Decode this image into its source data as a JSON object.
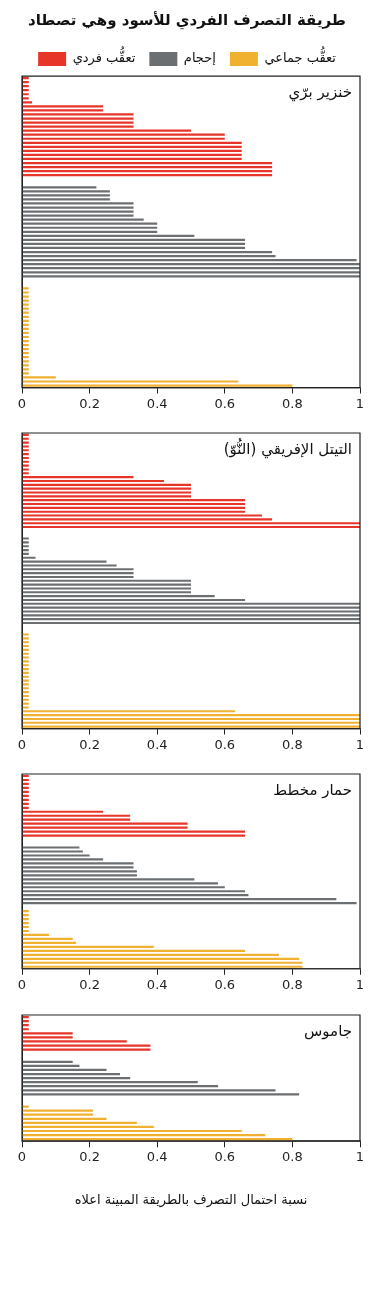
{
  "chart_data": [
    {
      "type": "bar",
      "orientation": "horizontal",
      "title": "طريقة التصرف الفردي للأسود وهي تصطاد",
      "subtitle": "خنزير برّي",
      "legend": "top",
      "tick_labels": "x",
      "xlim": [
        0,
        1
      ],
      "xticks": [
        0,
        0.2,
        0.4,
        0.6,
        0.8,
        1
      ],
      "categories": [
        null,
        null,
        null,
        null,
        null,
        null,
        null,
        null,
        null,
        null,
        null,
        null,
        null,
        null,
        null,
        null,
        null,
        null,
        null,
        null,
        null,
        null,
        null,
        null,
        null,
        null,
        null,
        null,
        null,
        null,
        null,
        null,
        null,
        null,
        null,
        null,
        null,
        null,
        null,
        null,
        null,
        null,
        null,
        null,
        null,
        null,
        null,
        null,
        null,
        null,
        null,
        null,
        null,
        null,
        null,
        null,
        null,
        null,
        null,
        null,
        null,
        null,
        null,
        null,
        null,
        null,
        null,
        null,
        null,
        null,
        null,
        null,
        null,
        null,
        null,
        null,
        null
      ],
      "series": [
        {
          "name": "تعقُّب فردي",
          "color": "#e8352a",
          "values": [
            0.02,
            0.02,
            0.02,
            0.02,
            0.02,
            0.02,
            0.03,
            0.24,
            0.24,
            0.33,
            0.33,
            0.33,
            0.33,
            0.5,
            0.6,
            0.6,
            0.65,
            0.65,
            0.65,
            0.65,
            0.65,
            0.74,
            0.74,
            0.74,
            0.74,
            null,
            null,
            null,
            null,
            null,
            null,
            null,
            null,
            null,
            null,
            null,
            null,
            null,
            null,
            null,
            null,
            null,
            null,
            null,
            null,
            null,
            null,
            null,
            null,
            null,
            null,
            null,
            null,
            null,
            null,
            null,
            null,
            null,
            null,
            null,
            null,
            null,
            null,
            null,
            null,
            null,
            null,
            null,
            null,
            null,
            null,
            null,
            null,
            null,
            null,
            null,
            null
          ]
        },
        {
          "name": "إحجام",
          "color": "#6b6f72",
          "values": [
            null,
            null,
            null,
            null,
            null,
            null,
            null,
            null,
            null,
            null,
            null,
            null,
            null,
            null,
            null,
            null,
            null,
            null,
            null,
            null,
            null,
            null,
            null,
            null,
            null,
            null,
            null,
            0.22,
            0.26,
            0.26,
            0.26,
            0.33,
            0.33,
            0.33,
            0.33,
            0.36,
            0.4,
            0.4,
            0.4,
            0.51,
            0.66,
            0.66,
            0.66,
            0.74,
            0.75,
            0.99,
            1,
            1,
            1,
            1,
            null,
            null,
            null,
            null,
            null,
            null,
            null,
            null,
            null,
            null,
            null,
            null,
            null,
            null,
            null,
            null,
            null,
            null,
            null,
            null,
            null,
            null,
            null,
            null,
            null,
            null,
            null
          ]
        },
        {
          "name": "تعقُّب جماعي",
          "color": "#f0b030",
          "values": [
            null,
            null,
            null,
            null,
            null,
            null,
            null,
            null,
            null,
            null,
            null,
            null,
            null,
            null,
            null,
            null,
            null,
            null,
            null,
            null,
            null,
            null,
            null,
            null,
            null,
            null,
            null,
            null,
            null,
            null,
            null,
            null,
            null,
            null,
            null,
            null,
            null,
            null,
            null,
            null,
            null,
            null,
            null,
            null,
            null,
            null,
            null,
            null,
            null,
            null,
            null,
            null,
            0.02,
            0.02,
            0.02,
            0.02,
            0.02,
            0.02,
            0.02,
            0.02,
            0.02,
            0.02,
            0.02,
            0.02,
            0.02,
            0.02,
            0.02,
            0.02,
            0.02,
            0.02,
            0.02,
            0.02,
            0.02,
            0.02,
            0.1,
            0.64,
            0.8
          ]
        }
      ]
    },
    {
      "type": "bar",
      "orientation": "horizontal",
      "subtitle": "التيتل الإفريقي (النُّوّ)",
      "tick_labels": "x",
      "xlim": [
        0,
        1
      ],
      "xticks": [
        0,
        0.2,
        0.4,
        0.6,
        0.8,
        1
      ],
      "categories": [
        null,
        null,
        null,
        null,
        null,
        null,
        null,
        null,
        null,
        null,
        null,
        null,
        null,
        null,
        null,
        null,
        null,
        null,
        null,
        null,
        null,
        null,
        null,
        null,
        null,
        null,
        null,
        null,
        null,
        null,
        null,
        null,
        null,
        null,
        null,
        null,
        null,
        null,
        null,
        null,
        null,
        null,
        null,
        null,
        null,
        null,
        null,
        null,
        null,
        null,
        null,
        null,
        null,
        null,
        null,
        null,
        null,
        null,
        null,
        null,
        null,
        null,
        null,
        null,
        null,
        null,
        null,
        null,
        null,
        null,
        null,
        null,
        null,
        null,
        null,
        null,
        null
      ],
      "series": [
        {
          "color": "#e8352a",
          "values": [
            0.02,
            0.02,
            0.02,
            0.02,
            0.02,
            0.02,
            0.02,
            0.02,
            0.02,
            0.02,
            0.02,
            0.33,
            0.42,
            0.5,
            0.5,
            0.5,
            0.5,
            0.66,
            0.66,
            0.66,
            0.66,
            0.71,
            0.74,
            1,
            1,
            null,
            null,
            null,
            null,
            null,
            null,
            null,
            null,
            null,
            null,
            null,
            null,
            null,
            null,
            null,
            null,
            null,
            null,
            null,
            null,
            null,
            null,
            null,
            null,
            null,
            null,
            null,
            null,
            null,
            null,
            null,
            null,
            null,
            null,
            null,
            null,
            null,
            null,
            null,
            null,
            null,
            null,
            null,
            null,
            null,
            null,
            null,
            null,
            null,
            null,
            null,
            null
          ]
        },
        {
          "color": "#6b6f72",
          "values": [
            null,
            null,
            null,
            null,
            null,
            null,
            null,
            null,
            null,
            null,
            null,
            null,
            null,
            null,
            null,
            null,
            null,
            null,
            null,
            null,
            null,
            null,
            null,
            null,
            null,
            null,
            null,
            0.02,
            0.02,
            0.02,
            0.02,
            0.02,
            0.04,
            0.25,
            0.28,
            0.33,
            0.33,
            0.33,
            0.5,
            0.5,
            0.5,
            0.5,
            0.57,
            0.66,
            1,
            1,
            1,
            1,
            1,
            1,
            null,
            null,
            null,
            null,
            null,
            null,
            null,
            null,
            null,
            null,
            null,
            null,
            null,
            null,
            null,
            null,
            null,
            null,
            null,
            null,
            null,
            null,
            null,
            null,
            null,
            null,
            null
          ]
        },
        {
          "color": "#f0b030",
          "values": [
            null,
            null,
            null,
            null,
            null,
            null,
            null,
            null,
            null,
            null,
            null,
            null,
            null,
            null,
            null,
            null,
            null,
            null,
            null,
            null,
            null,
            null,
            null,
            null,
            null,
            null,
            null,
            null,
            null,
            null,
            null,
            null,
            null,
            null,
            null,
            null,
            null,
            null,
            null,
            null,
            null,
            null,
            null,
            null,
            null,
            null,
            null,
            null,
            null,
            null,
            null,
            null,
            0.02,
            0.02,
            0.02,
            0.02,
            0.02,
            0.02,
            0.02,
            0.02,
            0.02,
            0.02,
            0.02,
            0.02,
            0.02,
            0.02,
            0.02,
            0.02,
            0.02,
            0.02,
            0.02,
            0.02,
            0.63,
            1,
            1,
            1,
            1
          ]
        }
      ]
    },
    {
      "type": "bar",
      "orientation": "horizontal",
      "subtitle": "حمار مخطط",
      "tick_labels": "x",
      "xlim": [
        0,
        1
      ],
      "xticks": [
        0,
        0.2,
        0.4,
        0.6,
        0.8,
        1
      ],
      "categories": [
        null,
        null,
        null,
        null,
        null,
        null,
        null,
        null,
        null,
        null,
        null,
        null,
        null,
        null,
        null,
        null,
        null,
        null,
        null,
        null,
        null,
        null,
        null,
        null,
        null,
        null,
        null,
        null,
        null,
        null,
        null,
        null,
        null,
        null,
        null,
        null,
        null,
        null,
        null,
        null,
        null,
        null,
        null,
        null,
        null,
        null,
        null,
        null,
        null
      ],
      "series": [
        {
          "color": "#e8352a",
          "values": [
            0.02,
            0.02,
            0.02,
            0.02,
            0.02,
            0.02,
            0.02,
            0.02,
            0.02,
            0.24,
            0.32,
            0.32,
            0.49,
            0.49,
            0.66,
            0.66,
            null,
            null,
            null,
            null,
            null,
            null,
            null,
            null,
            null,
            null,
            null,
            null,
            null,
            null,
            null,
            null,
            null,
            null,
            null,
            null,
            null,
            null,
            null,
            null,
            null,
            null,
            null,
            null,
            null,
            null,
            null,
            null,
            null
          ]
        },
        {
          "color": "#6b6f72",
          "values": [
            null,
            null,
            null,
            null,
            null,
            null,
            null,
            null,
            null,
            null,
            null,
            null,
            null,
            null,
            null,
            null,
            null,
            null,
            0.17,
            0.18,
            0.2,
            0.24,
            0.33,
            0.33,
            0.34,
            0.34,
            0.51,
            0.58,
            0.6,
            0.66,
            0.67,
            0.93,
            0.99,
            null,
            null,
            null,
            null,
            null,
            null,
            null,
            null,
            null,
            null,
            null,
            null,
            null,
            null,
            null,
            null
          ]
        },
        {
          "color": "#f0b030",
          "values": [
            null,
            null,
            null,
            null,
            null,
            null,
            null,
            null,
            null,
            null,
            null,
            null,
            null,
            null,
            null,
            null,
            null,
            null,
            null,
            null,
            null,
            null,
            null,
            null,
            null,
            null,
            null,
            null,
            null,
            null,
            null,
            null,
            null,
            null,
            0.02,
            0.02,
            0.02,
            0.02,
            0.02,
            0.02,
            0.08,
            0.15,
            0.16,
            0.39,
            0.66,
            0.76,
            0.82,
            0.83,
            0.83
          ]
        }
      ]
    },
    {
      "type": "bar",
      "orientation": "horizontal",
      "subtitle": "جاموس",
      "xlabel": "نسبة احتمال التصرف بالطريقة المبينة اعلاه",
      "tick_labels": "x",
      "xlim": [
        0,
        1
      ],
      "xticks": [
        0,
        0.2,
        0.4,
        0.6,
        0.8,
        1
      ],
      "categories": [
        null,
        null,
        null,
        null,
        null,
        null,
        null,
        null,
        null,
        null,
        null,
        null,
        null,
        null,
        null,
        null,
        null,
        null,
        null,
        null,
        null,
        null,
        null,
        null,
        null,
        null,
        null,
        null,
        null,
        null,
        null
      ],
      "series": [
        {
          "color": "#e8352a",
          "values": [
            0.02,
            0.02,
            0.02,
            0.02,
            0.15,
            0.15,
            0.31,
            0.38,
            0.38,
            null,
            null,
            null,
            null,
            null,
            null,
            null,
            null,
            null,
            null,
            null,
            null,
            null,
            null,
            null,
            null,
            null,
            null,
            null,
            null,
            null,
            null
          ]
        },
        {
          "color": "#6b6f72",
          "values": [
            null,
            null,
            null,
            null,
            null,
            null,
            null,
            null,
            null,
            null,
            null,
            0.15,
            0.17,
            0.25,
            0.29,
            0.32,
            0.52,
            0.58,
            0.75,
            0.82,
            null,
            null,
            null,
            null,
            null,
            null,
            null,
            null,
            null,
            null,
            null
          ]
        },
        {
          "color": "#f0b030",
          "values": [
            null,
            null,
            null,
            null,
            null,
            null,
            null,
            null,
            null,
            null,
            null,
            null,
            null,
            null,
            null,
            null,
            null,
            null,
            null,
            null,
            null,
            null,
            0.02,
            0.21,
            0.21,
            0.25,
            0.34,
            0.39,
            0.65,
            0.72,
            0.8
          ]
        }
      ]
    }
  ]
}
